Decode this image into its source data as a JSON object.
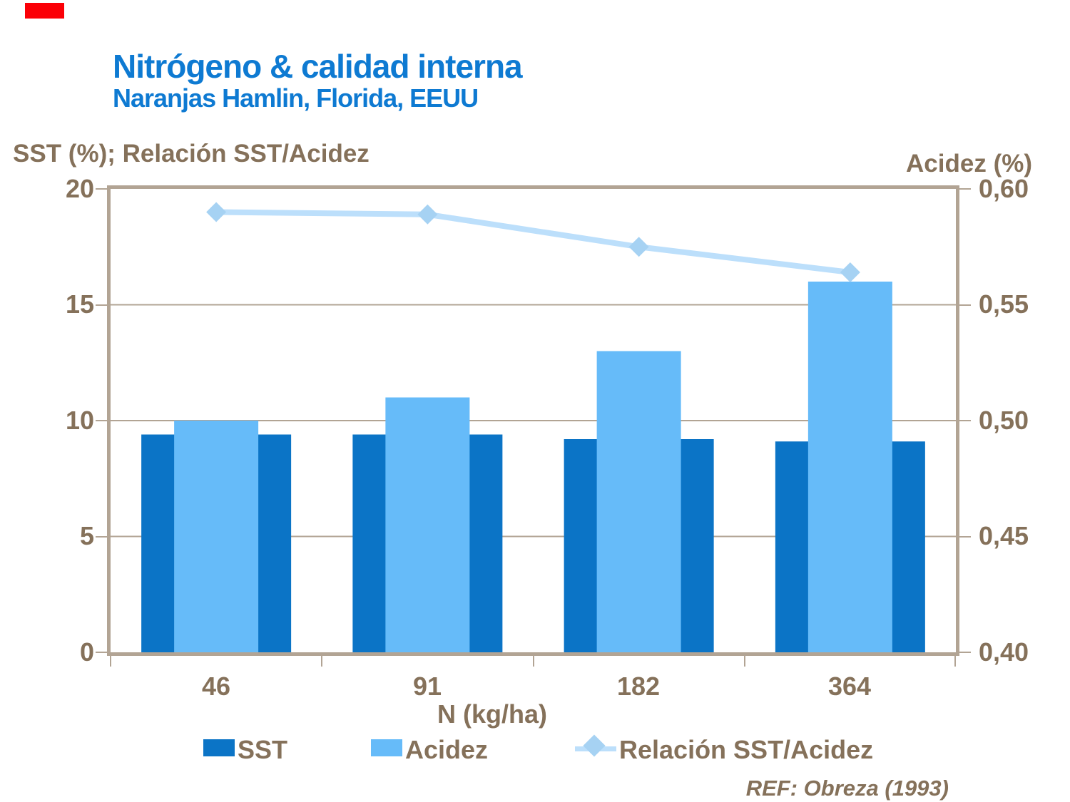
{
  "header": {
    "title": "Nitrógeno & calidad interna",
    "subtitle": "Naranjas Hamlin, Florida, EEUU"
  },
  "axes": {
    "left_title": "SST (%); Relación SST/Acidez",
    "right_title": "Acidez (%)",
    "x_title": "N (kg/ha)",
    "left_ticks": [
      "20",
      "15",
      "10",
      "5",
      "0"
    ],
    "right_ticks": [
      "0,60",
      "0,55",
      "0,50",
      "0,45",
      "0,40"
    ]
  },
  "legend": {
    "sst_label": "SST",
    "acidez_label": "Acidez",
    "relacion_label": "Relación SST/Acidez"
  },
  "footer": {
    "ref": "REF: Obreza (1993)"
  },
  "colors": {
    "accent_red": "#FB0007",
    "title_blue": "#0E7AD2",
    "text_brown": "#85715A",
    "frame_tan": "#B2A494",
    "sst_bar": "#0B74C6",
    "acidez_bar": "#66BBF9",
    "line_pale_blue": "#BCDFFB",
    "marker_blue": "#A6D2F3"
  },
  "chart_data": {
    "type": "bar",
    "subtype": "grouped bars with overlay line, dual y-axis",
    "title": "Nitrógeno & calidad interna — Naranjas Hamlin, Florida, EEUU",
    "categories": [
      "46",
      "91",
      "182",
      "364"
    ],
    "xlabel": "N (kg/ha)",
    "series": [
      {
        "name": "SST",
        "type": "bar",
        "axis": "left",
        "color": "#0B74C6",
        "values": [
          9.4,
          9.4,
          9.2,
          9.1
        ]
      },
      {
        "name": "Acidez",
        "type": "bar",
        "axis": "right",
        "color": "#66BBF9",
        "values": [
          0.5,
          0.51,
          0.53,
          0.56
        ]
      },
      {
        "name": "Relación SST/Acidez",
        "type": "line",
        "axis": "left",
        "color": "#BCDFFB",
        "values": [
          19.0,
          18.9,
          17.5,
          16.4
        ]
      }
    ],
    "left_axis": {
      "label": "SST (%); Relación SST/Acidez",
      "min": 0,
      "max": 20,
      "step": 5
    },
    "right_axis": {
      "label": "Acidez (%)",
      "min": 0.4,
      "max": 0.6,
      "step": 0.05
    },
    "grid": "horizontal gridlines at left-axis steps",
    "legend_position": "bottom",
    "annotation": "REF: Obreza (1993)"
  }
}
